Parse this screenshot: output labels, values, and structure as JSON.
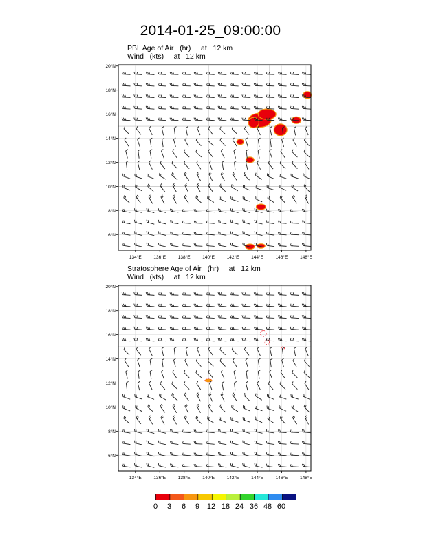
{
  "title": "2014-01-25_09:00:00",
  "panels": [
    {
      "id": "pbl",
      "field_label": "PBL Age of Air   (hr)     at   12 km",
      "wind_label": "Wind   (kts)     at   12 km"
    },
    {
      "id": "strat",
      "field_label": "Stratosphere Age of Air   (hr)     at   12 km",
      "wind_label": "Wind   (kts)     at   12 km"
    }
  ],
  "map": {
    "lat_range": [
      4.7,
      20.1
    ],
    "lon_range": [
      132.6,
      148.4
    ],
    "lat_ticks": [
      "20°N",
      "18°N",
      "16°N",
      "14°N",
      "12°N",
      "10°N",
      "8°N",
      "6°N"
    ],
    "lon_ticks": [
      "134°E",
      "136°E",
      "138°E",
      "140°E",
      "142°E",
      "144°E",
      "146°E",
      "148°E"
    ],
    "grid": true
  },
  "colorbar": {
    "labels": [
      "0",
      "3",
      "6",
      "9",
      "12",
      "18",
      "24",
      "36",
      "48",
      "60"
    ],
    "colors": [
      "#ffffff",
      "#e8000b",
      "#f4581b",
      "#f7960f",
      "#f7c800",
      "#f5f500",
      "#b9f03c",
      "#33d42d",
      "#25e7d8",
      "#2f8cf0",
      "#0a1282"
    ]
  }
}
